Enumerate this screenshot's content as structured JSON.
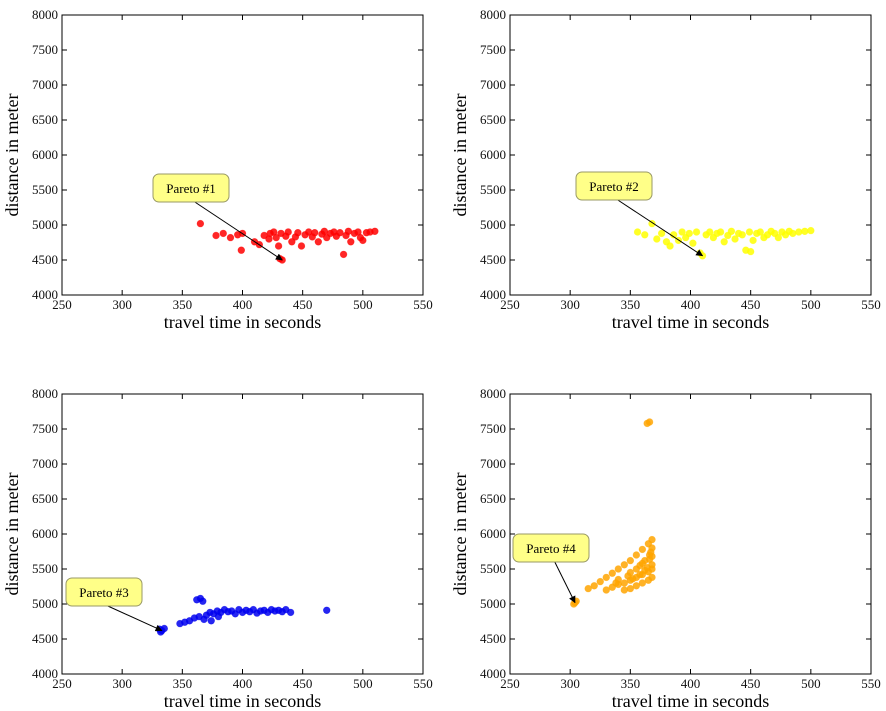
{
  "chart_data": [
    {
      "type": "scatter",
      "title": "",
      "xlabel": "travel time in seconds",
      "ylabel": "distance in meter",
      "xlim": [
        250,
        550
      ],
      "ylim": [
        4000,
        8000
      ],
      "xticks": [
        250,
        300,
        350,
        400,
        450,
        500,
        550
      ],
      "yticks": [
        4000,
        4500,
        5000,
        5500,
        6000,
        6500,
        7000,
        7500,
        8000
      ],
      "grid": false,
      "color": "#ff0000",
      "annotation": {
        "text": "Pareto #1",
        "points_to": [
          433,
          4500
        ]
      },
      "series": [
        {
          "points": [
            [
              365,
              5020
            ],
            [
              378,
              4850
            ],
            [
              384,
              4880
            ],
            [
              390,
              4820
            ],
            [
              396,
              4860
            ],
            [
              400,
              4880
            ],
            [
              399,
              4640
            ],
            [
              410,
              4760
            ],
            [
              414,
              4720
            ],
            [
              418,
              4850
            ],
            [
              422,
              4800
            ],
            [
              423,
              4880
            ],
            [
              426,
              4900
            ],
            [
              428,
              4820
            ],
            [
              430,
              4700
            ],
            [
              432,
              4880
            ],
            [
              436,
              4840
            ],
            [
              438,
              4900
            ],
            [
              441,
              4760
            ],
            [
              444,
              4830
            ],
            [
              446,
              4890
            ],
            [
              449,
              4700
            ],
            [
              452,
              4860
            ],
            [
              455,
              4900
            ],
            [
              458,
              4830
            ],
            [
              460,
              4890
            ],
            [
              463,
              4760
            ],
            [
              466,
              4870
            ],
            [
              468,
              4910
            ],
            [
              470,
              4820
            ],
            [
              473,
              4880
            ],
            [
              476,
              4900
            ],
            [
              478,
              4840
            ],
            [
              481,
              4890
            ],
            [
              484,
              4580
            ],
            [
              486,
              4850
            ],
            [
              488,
              4910
            ],
            [
              490,
              4760
            ],
            [
              493,
              4880
            ],
            [
              496,
              4900
            ],
            [
              498,
              4820
            ],
            [
              500,
              4780
            ],
            [
              503,
              4890
            ],
            [
              506,
              4900
            ],
            [
              510,
              4910
            ],
            [
              433,
              4500
            ],
            [
              431,
              4520
            ]
          ]
        }
      ]
    },
    {
      "type": "scatter",
      "title": "",
      "xlabel": "travel time in seconds",
      "ylabel": "distance in meter",
      "xlim": [
        250,
        550
      ],
      "ylim": [
        4000,
        8000
      ],
      "xticks": [
        250,
        300,
        350,
        400,
        450,
        500,
        550
      ],
      "yticks": [
        4000,
        4500,
        5000,
        5500,
        6000,
        6500,
        7000,
        7500,
        8000
      ],
      "grid": false,
      "color": "#ffff00",
      "annotation": {
        "text": "Pareto #2",
        "points_to": [
          410,
          4560
        ]
      },
      "series": [
        {
          "points": [
            [
              356,
              4900
            ],
            [
              362,
              4860
            ],
            [
              368,
              5020
            ],
            [
              372,
              4800
            ],
            [
              376,
              4880
            ],
            [
              380,
              4760
            ],
            [
              383,
              4700
            ],
            [
              386,
              4860
            ],
            [
              390,
              4780
            ],
            [
              393,
              4900
            ],
            [
              396,
              4820
            ],
            [
              399,
              4880
            ],
            [
              402,
              4740
            ],
            [
              405,
              4900
            ],
            [
              408,
              4600
            ],
            [
              410,
              4560
            ],
            [
              413,
              4860
            ],
            [
              416,
              4900
            ],
            [
              419,
              4820
            ],
            [
              422,
              4880
            ],
            [
              425,
              4900
            ],
            [
              428,
              4760
            ],
            [
              431,
              4850
            ],
            [
              434,
              4910
            ],
            [
              437,
              4800
            ],
            [
              440,
              4880
            ],
            [
              443,
              4860
            ],
            [
              446,
              4640
            ],
            [
              449,
              4900
            ],
            [
              452,
              4780
            ],
            [
              455,
              4880
            ],
            [
              458,
              4900
            ],
            [
              461,
              4820
            ],
            [
              464,
              4860
            ],
            [
              467,
              4910
            ],
            [
              470,
              4880
            ],
            [
              473,
              4820
            ],
            [
              476,
              4900
            ],
            [
              479,
              4860
            ],
            [
              482,
              4910
            ],
            [
              485,
              4880
            ],
            [
              490,
              4900
            ],
            [
              495,
              4910
            ],
            [
              500,
              4920
            ],
            [
              450,
              4620
            ]
          ]
        }
      ]
    },
    {
      "type": "scatter",
      "title": "",
      "xlabel": "travel time in seconds",
      "ylabel": "distance in meter",
      "xlim": [
        250,
        550
      ],
      "ylim": [
        4000,
        8000
      ],
      "xticks": [
        250,
        300,
        350,
        400,
        450,
        500,
        550
      ],
      "yticks": [
        4000,
        4500,
        5000,
        5500,
        6000,
        6500,
        7000,
        7500,
        8000
      ],
      "grid": false,
      "color": "#0000ee",
      "annotation": {
        "text": "Pareto #3",
        "points_to": [
          333,
          4620
        ]
      },
      "series": [
        {
          "points": [
            [
              331,
              4640
            ],
            [
              333,
              4620
            ],
            [
              335,
              4650
            ],
            [
              332,
              4600
            ],
            [
              348,
              4720
            ],
            [
              352,
              4740
            ],
            [
              356,
              4760
            ],
            [
              360,
              4800
            ],
            [
              364,
              4820
            ],
            [
              362,
              5060
            ],
            [
              365,
              5080
            ],
            [
              367,
              5040
            ],
            [
              370,
              4840
            ],
            [
              373,
              4880
            ],
            [
              376,
              4860
            ],
            [
              379,
              4900
            ],
            [
              382,
              4880
            ],
            [
              385,
              4920
            ],
            [
              388,
              4890
            ],
            [
              391,
              4900
            ],
            [
              394,
              4860
            ],
            [
              397,
              4920
            ],
            [
              400,
              4880
            ],
            [
              403,
              4910
            ],
            [
              406,
              4890
            ],
            [
              409,
              4920
            ],
            [
              412,
              4870
            ],
            [
              415,
              4900
            ],
            [
              418,
              4910
            ],
            [
              421,
              4880
            ],
            [
              424,
              4920
            ],
            [
              427,
              4900
            ],
            [
              430,
              4910
            ],
            [
              433,
              4890
            ],
            [
              436,
              4920
            ],
            [
              440,
              4880
            ],
            [
              470,
              4910
            ],
            [
              368,
              4780
            ],
            [
              374,
              4760
            ],
            [
              380,
              4820
            ]
          ]
        }
      ]
    },
    {
      "type": "scatter",
      "title": "",
      "xlabel": "travel time in seconds",
      "ylabel": "distance in meter",
      "xlim": [
        250,
        550
      ],
      "ylim": [
        4000,
        8000
      ],
      "xticks": [
        250,
        300,
        350,
        400,
        450,
        500,
        550
      ],
      "yticks": [
        4000,
        4500,
        5000,
        5500,
        6000,
        6500,
        7000,
        7500,
        8000
      ],
      "grid": false,
      "color": "#ffa500",
      "annotation": {
        "text": "Pareto #4",
        "points_to": [
          304,
          5020
        ]
      },
      "series": [
        {
          "points": [
            [
              304,
              5020
            ],
            [
              305,
              5040
            ],
            [
              303,
              5000
            ],
            [
              366,
              7600
            ],
            [
              364,
              7580
            ],
            [
              315,
              5220
            ],
            [
              320,
              5260
            ],
            [
              325,
              5320
            ],
            [
              330,
              5380
            ],
            [
              335,
              5440
            ],
            [
              340,
              5500
            ],
            [
              345,
              5560
            ],
            [
              350,
              5620
            ],
            [
              355,
              5700
            ],
            [
              360,
              5780
            ],
            [
              365,
              5860
            ],
            [
              368,
              5920
            ],
            [
              330,
              5200
            ],
            [
              335,
              5240
            ],
            [
              340,
              5280
            ],
            [
              345,
              5300
            ],
            [
              350,
              5340
            ],
            [
              355,
              5380
            ],
            [
              360,
              5420
            ],
            [
              365,
              5460
            ],
            [
              368,
              5500
            ],
            [
              345,
              5200
            ],
            [
              350,
              5220
            ],
            [
              355,
              5260
            ],
            [
              360,
              5300
            ],
            [
              365,
              5340
            ],
            [
              368,
              5380
            ],
            [
              340,
              5350
            ],
            [
              350,
              5450
            ],
            [
              358,
              5550
            ],
            [
              362,
              5620
            ],
            [
              366,
              5700
            ],
            [
              368,
              5800
            ],
            [
              355,
              5500
            ],
            [
              360,
              5580
            ],
            [
              366,
              5640
            ],
            [
              368,
              5560
            ],
            [
              362,
              5480
            ],
            [
              348,
              5400
            ],
            [
              338,
              5300
            ],
            [
              368,
              5680
            ],
            [
              367,
              5740
            ],
            [
              364,
              5520
            ],
            [
              358,
              5420
            ],
            [
              352,
              5360
            ]
          ]
        }
      ]
    }
  ]
}
